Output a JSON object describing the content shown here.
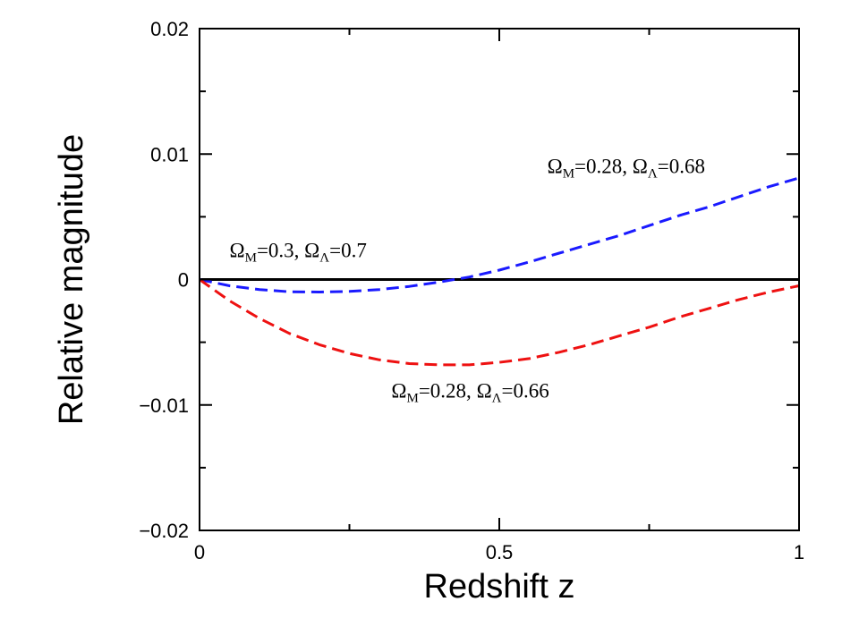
{
  "chart_data": {
    "type": "line",
    "xlabel": "Redshift z",
    "ylabel": "Relative magnitude",
    "xlim": [
      0,
      1
    ],
    "ylim": [
      -0.02,
      0.02
    ],
    "x_ticks": [
      0,
      0.5,
      1
    ],
    "x_tick_labels": [
      "0",
      "0.5",
      "1"
    ],
    "y_ticks": [
      -0.02,
      -0.01,
      0,
      0.01,
      0.02
    ],
    "y_tick_labels": [
      "−0.02",
      "−0.01",
      "0",
      "0.01",
      "0.02"
    ],
    "grid": false,
    "series": [
      {
        "color": "#000000",
        "style": "solid",
        "x": [
          0,
          0.1,
          0.2,
          0.3,
          0.4,
          0.5,
          0.6,
          0.7,
          0.8,
          0.9,
          1.0
        ],
        "y": [
          0,
          0,
          0,
          0,
          0,
          0,
          0,
          0,
          0,
          0,
          0
        ]
      },
      {
        "color": "#1a1aff",
        "style": "dashed",
        "x": [
          0,
          0.05,
          0.1,
          0.15,
          0.2,
          0.25,
          0.3,
          0.35,
          0.4,
          0.45,
          0.5,
          0.55,
          0.6,
          0.65,
          0.7,
          0.75,
          0.8,
          0.85,
          0.9,
          0.95,
          1.0
        ],
        "y": [
          0,
          -0.0005,
          -0.0008,
          -0.00098,
          -0.001,
          -0.00095,
          -0.0008,
          -0.00055,
          -0.0002,
          0.0002,
          0.00075,
          0.0014,
          0.0021,
          0.0028,
          0.0035,
          0.0043,
          0.0051,
          0.0058,
          0.0066,
          0.0074,
          0.0081
        ]
      },
      {
        "color": "#ee1111",
        "style": "dashed",
        "x": [
          0,
          0.05,
          0.1,
          0.15,
          0.2,
          0.25,
          0.3,
          0.35,
          0.4,
          0.45,
          0.5,
          0.55,
          0.6,
          0.65,
          0.7,
          0.75,
          0.8,
          0.85,
          0.9,
          0.95,
          1.0
        ],
        "y": [
          0,
          -0.0017,
          -0.0031,
          -0.0043,
          -0.0052,
          -0.0059,
          -0.0064,
          -0.0067,
          -0.0068,
          -0.0068,
          -0.0066,
          -0.0063,
          -0.0058,
          -0.0052,
          -0.0045,
          -0.0038,
          -0.003,
          -0.0023,
          -0.0016,
          -0.001,
          -0.0005
        ]
      }
    ],
    "annotations": [
      {
        "omega": "Ω",
        "sub1": "M",
        "text1": "=0.3, ",
        "sub2": "Λ",
        "text2": "=0.7",
        "x": 0.05,
        "y": 0.0018
      },
      {
        "omega": "Ω",
        "sub1": "M",
        "text1": "=0.28, ",
        "sub2": "Λ",
        "text2": "=0.68",
        "x": 0.58,
        "y": 0.0085
      },
      {
        "omega": "Ω",
        "sub1": "M",
        "text1": "=0.28, ",
        "sub2": "Λ",
        "text2": "=0.66",
        "x": 0.32,
        "y": -0.0094
      }
    ]
  }
}
